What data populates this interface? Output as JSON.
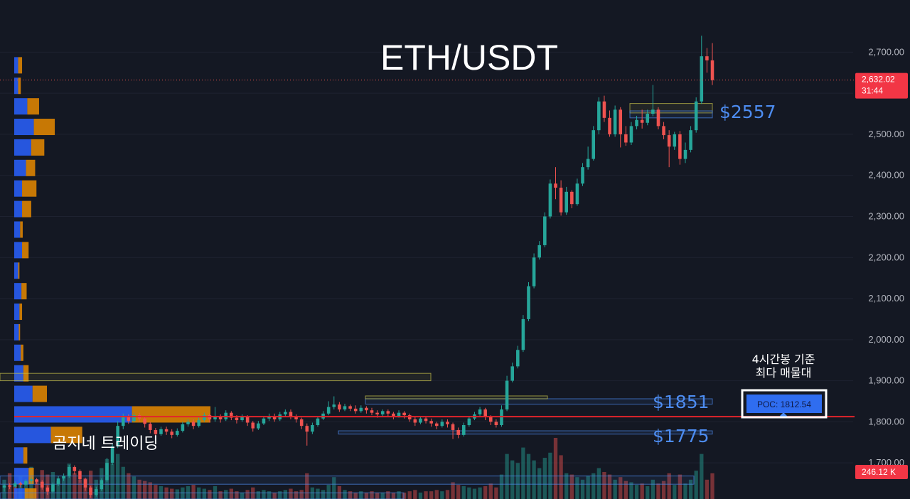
{
  "chart_data": {
    "type": "candlestick",
    "title": "ETH/USDT",
    "watermark": "곰지네 트레이딩",
    "y_ticks": [
      1700,
      1800,
      1900,
      2000,
      2100,
      2200,
      2300,
      2400,
      2500,
      2600,
      2700
    ],
    "y_tick_labels": [
      "1,700.00",
      "1,800.00",
      "1,900.00",
      "2,000.00",
      "2,100.00",
      "2,200.00",
      "2,300.00",
      "2,400.00",
      "2,500.00",
      "2,600.00",
      "2,700.00"
    ],
    "ylim": [
      1612,
      2827
    ],
    "current_price": 2632.02,
    "current_price_label": "2,632.02",
    "countdown": "31:44",
    "volume_label": "246.12 K",
    "poc": {
      "label": "POC: 1812.54",
      "price": 1812.54,
      "note_line1": "4시간봉 기준",
      "note_line2": "최다 매물대"
    },
    "levels": [
      {
        "label": "$2557",
        "price": 2557
      },
      {
        "label": "$1851",
        "price": 1851
      },
      {
        "label": "$1775",
        "price": 1775
      }
    ],
    "colors": {
      "up": "#26a69a",
      "down": "#ef5350",
      "level": "#4d8cf0",
      "poc_line": "#e3242b",
      "vp_buy": "#2962ff",
      "vp_sell": "#e68a00"
    },
    "candles": [
      [
        1640,
        1645,
        1630,
        1648
      ],
      [
        1645,
        1642,
        1636,
        1650
      ],
      [
        1642,
        1650,
        1638,
        1655
      ],
      [
        1650,
        1647,
        1640,
        1654
      ],
      [
        1647,
        1656,
        1644,
        1660
      ],
      [
        1656,
        1660,
        1650,
        1665
      ],
      [
        1660,
        1654,
        1648,
        1663
      ],
      [
        1654,
        1640,
        1635,
        1658
      ],
      [
        1640,
        1630,
        1622,
        1645
      ],
      [
        1630,
        1648,
        1626,
        1652
      ],
      [
        1648,
        1662,
        1644,
        1668
      ],
      [
        1662,
        1668,
        1656,
        1674
      ],
      [
        1668,
        1690,
        1664,
        1695
      ],
      [
        1690,
        1680,
        1672,
        1694
      ],
      [
        1680,
        1660,
        1652,
        1684
      ],
      [
        1660,
        1640,
        1632,
        1664
      ],
      [
        1640,
        1622,
        1615,
        1644
      ],
      [
        1622,
        1636,
        1618,
        1642
      ],
      [
        1636,
        1658,
        1632,
        1662
      ],
      [
        1658,
        1700,
        1654,
        1712
      ],
      [
        1700,
        1740,
        1695,
        1748
      ],
      [
        1740,
        1790,
        1736,
        1802
      ],
      [
        1790,
        1812,
        1782,
        1820
      ],
      [
        1812,
        1802,
        1795,
        1818
      ],
      [
        1802,
        1816,
        1798,
        1822
      ],
      [
        1816,
        1808,
        1800,
        1822
      ],
      [
        1808,
        1795,
        1786,
        1812
      ],
      [
        1795,
        1780,
        1772,
        1800
      ],
      [
        1780,
        1770,
        1762,
        1785
      ],
      [
        1770,
        1782,
        1766,
        1788
      ],
      [
        1782,
        1776,
        1768,
        1788
      ],
      [
        1776,
        1768,
        1760,
        1782
      ],
      [
        1768,
        1778,
        1764,
        1784
      ],
      [
        1778,
        1794,
        1774,
        1800
      ],
      [
        1794,
        1800,
        1788,
        1806
      ],
      [
        1800,
        1790,
        1782,
        1806
      ],
      [
        1790,
        1804,
        1786,
        1810
      ],
      [
        1804,
        1816,
        1800,
        1822
      ],
      [
        1816,
        1806,
        1798,
        1820
      ],
      [
        1806,
        1812,
        1800,
        1836
      ],
      [
        1812,
        1806,
        1798,
        1818
      ],
      [
        1806,
        1822,
        1802,
        1828
      ],
      [
        1822,
        1810,
        1804,
        1826
      ],
      [
        1810,
        1804,
        1796,
        1816
      ],
      [
        1804,
        1812,
        1800,
        1818
      ],
      [
        1812,
        1798,
        1790,
        1816
      ],
      [
        1798,
        1784,
        1776,
        1802
      ],
      [
        1784,
        1796,
        1780,
        1802
      ],
      [
        1796,
        1808,
        1792,
        1814
      ],
      [
        1808,
        1814,
        1802,
        1820
      ],
      [
        1814,
        1806,
        1800,
        1820
      ],
      [
        1806,
        1818,
        1802,
        1824
      ],
      [
        1818,
        1824,
        1812,
        1830
      ],
      [
        1824,
        1812,
        1806,
        1830
      ],
      [
        1812,
        1806,
        1798,
        1818
      ],
      [
        1806,
        1790,
        1782,
        1810
      ],
      [
        1790,
        1776,
        1742,
        1796
      ],
      [
        1776,
        1792,
        1770,
        1798
      ],
      [
        1792,
        1808,
        1788,
        1812
      ],
      [
        1808,
        1820,
        1804,
        1826
      ],
      [
        1820,
        1836,
        1816,
        1850
      ],
      [
        1836,
        1842,
        1830,
        1862
      ],
      [
        1842,
        1830,
        1824,
        1848
      ],
      [
        1830,
        1838,
        1826,
        1844
      ],
      [
        1838,
        1832,
        1826,
        1842
      ],
      [
        1832,
        1826,
        1820,
        1840
      ],
      [
        1826,
        1834,
        1822,
        1840
      ],
      [
        1834,
        1828,
        1820,
        1838
      ],
      [
        1828,
        1822,
        1816,
        1834
      ],
      [
        1822,
        1818,
        1810,
        1828
      ],
      [
        1818,
        1826,
        1814,
        1830
      ],
      [
        1826,
        1820,
        1812,
        1830
      ],
      [
        1820,
        1814,
        1806,
        1824
      ],
      [
        1814,
        1822,
        1810,
        1828
      ],
      [
        1822,
        1816,
        1808,
        1826
      ],
      [
        1816,
        1806,
        1800,
        1820
      ],
      [
        1806,
        1798,
        1790,
        1812
      ],
      [
        1798,
        1808,
        1794,
        1812
      ],
      [
        1808,
        1802,
        1796,
        1814
      ],
      [
        1802,
        1796,
        1788,
        1808
      ],
      [
        1796,
        1790,
        1782,
        1800
      ],
      [
        1790,
        1800,
        1786,
        1806
      ],
      [
        1800,
        1794,
        1786,
        1806
      ],
      [
        1794,
        1780,
        1758,
        1798
      ],
      [
        1780,
        1768,
        1760,
        1786
      ],
      [
        1768,
        1792,
        1764,
        1798
      ],
      [
        1792,
        1808,
        1788,
        1814
      ],
      [
        1808,
        1818,
        1804,
        1824
      ],
      [
        1818,
        1830,
        1814,
        1836
      ],
      [
        1830,
        1812,
        1804,
        1834
      ],
      [
        1812,
        1800,
        1792,
        1816
      ],
      [
        1800,
        1792,
        1786,
        1806
      ],
      [
        1792,
        1830,
        1788,
        1840
      ],
      [
        1830,
        1900,
        1826,
        1912
      ],
      [
        1900,
        1935,
        1896,
        1944
      ],
      [
        1935,
        1975,
        1930,
        1985
      ],
      [
        1975,
        2050,
        1970,
        2060
      ],
      [
        2050,
        2130,
        2045,
        2140
      ],
      [
        2130,
        2200,
        2125,
        2210
      ],
      [
        2200,
        2230,
        2195,
        2240
      ],
      [
        2230,
        2300,
        2225,
        2310
      ],
      [
        2300,
        2380,
        2295,
        2390
      ],
      [
        2380,
        2370,
        2342,
        2420
      ],
      [
        2370,
        2310,
        2302,
        2388
      ],
      [
        2310,
        2360,
        2304,
        2372
      ],
      [
        2360,
        2330,
        2320,
        2364
      ],
      [
        2330,
        2380,
        2326,
        2392
      ],
      [
        2380,
        2420,
        2374,
        2430
      ],
      [
        2420,
        2440,
        2414,
        2470
      ],
      [
        2440,
        2510,
        2436,
        2520
      ],
      [
        2510,
        2580,
        2500,
        2590
      ],
      [
        2580,
        2540,
        2530,
        2594
      ],
      [
        2540,
        2500,
        2494,
        2558
      ],
      [
        2500,
        2560,
        2494,
        2570
      ],
      [
        2560,
        2500,
        2468,
        2566
      ],
      [
        2500,
        2480,
        2472,
        2520
      ],
      [
        2480,
        2520,
        2474,
        2530
      ],
      [
        2520,
        2535,
        2512,
        2545
      ],
      [
        2535,
        2528,
        2514,
        2560
      ],
      [
        2528,
        2550,
        2522,
        2560
      ],
      [
        2550,
        2560,
        2544,
        2620
      ],
      [
        2560,
        2520,
        2512,
        2566
      ],
      [
        2520,
        2498,
        2488,
        2530
      ],
      [
        2498,
        2470,
        2420,
        2510
      ],
      [
        2470,
        2500,
        2462,
        2506
      ],
      [
        2500,
        2440,
        2426,
        2508
      ],
      [
        2440,
        2462,
        2430,
        2480
      ],
      [
        2462,
        2510,
        2456,
        2520
      ],
      [
        2510,
        2580,
        2504,
        2590
      ],
      [
        2580,
        2690,
        2574,
        2740
      ],
      [
        2690,
        2680,
        2650,
        2710
      ],
      [
        2680,
        2632,
        2620,
        2722
      ]
    ],
    "volume_profile": [
      [
        2668,
        6,
        6
      ],
      [
        2618,
        6,
        4
      ],
      [
        2568,
        20,
        18
      ],
      [
        2518,
        30,
        32
      ],
      [
        2468,
        26,
        20
      ],
      [
        2418,
        18,
        14
      ],
      [
        2368,
        12,
        22
      ],
      [
        2318,
        12,
        14
      ],
      [
        2268,
        9,
        4
      ],
      [
        2218,
        12,
        10
      ],
      [
        2168,
        6,
        2
      ],
      [
        2118,
        11,
        8
      ],
      [
        2068,
        8,
        4
      ],
      [
        2018,
        7,
        2
      ],
      [
        1968,
        10,
        4
      ],
      [
        1918,
        14,
        8
      ],
      [
        1868,
        28,
        22
      ],
      [
        1818,
        180,
        120
      ],
      [
        1768,
        56,
        48
      ],
      [
        1718,
        14,
        6
      ],
      [
        1668,
        22,
        8
      ],
      [
        1618,
        16,
        18
      ]
    ],
    "volume": [
      [
        30,
        0
      ],
      [
        40,
        1
      ],
      [
        20,
        1
      ],
      [
        35,
        0
      ],
      [
        25,
        0
      ],
      [
        50,
        0
      ],
      [
        30,
        1
      ],
      [
        45,
        1
      ],
      [
        38,
        1
      ],
      [
        42,
        0
      ],
      [
        28,
        0
      ],
      [
        36,
        0
      ],
      [
        55,
        0
      ],
      [
        40,
        1
      ],
      [
        30,
        1
      ],
      [
        32,
        1
      ],
      [
        44,
        1
      ],
      [
        30,
        0
      ],
      [
        48,
        0
      ],
      [
        62,
        0
      ],
      [
        55,
        0
      ],
      [
        70,
        0
      ],
      [
        50,
        0
      ],
      [
        40,
        1
      ],
      [
        35,
        0
      ],
      [
        30,
        1
      ],
      [
        28,
        1
      ],
      [
        26,
        1
      ],
      [
        22,
        1
      ],
      [
        20,
        0
      ],
      [
        18,
        1
      ],
      [
        16,
        1
      ],
      [
        15,
        0
      ],
      [
        18,
        0
      ],
      [
        20,
        0
      ],
      [
        22,
        1
      ],
      [
        18,
        0
      ],
      [
        16,
        0
      ],
      [
        14,
        1
      ],
      [
        20,
        0
      ],
      [
        12,
        1
      ],
      [
        14,
        0
      ],
      [
        16,
        1
      ],
      [
        12,
        1
      ],
      [
        10,
        0
      ],
      [
        14,
        1
      ],
      [
        18,
        1
      ],
      [
        12,
        0
      ],
      [
        14,
        0
      ],
      [
        12,
        0
      ],
      [
        10,
        1
      ],
      [
        12,
        0
      ],
      [
        14,
        0
      ],
      [
        16,
        1
      ],
      [
        12,
        1
      ],
      [
        14,
        1
      ],
      [
        40,
        1
      ],
      [
        18,
        0
      ],
      [
        16,
        0
      ],
      [
        14,
        0
      ],
      [
        22,
        0
      ],
      [
        34,
        0
      ],
      [
        20,
        1
      ],
      [
        14,
        0
      ],
      [
        12,
        1
      ],
      [
        10,
        1
      ],
      [
        12,
        0
      ],
      [
        10,
        1
      ],
      [
        12,
        1
      ],
      [
        10,
        1
      ],
      [
        10,
        0
      ],
      [
        12,
        1
      ],
      [
        10,
        1
      ],
      [
        12,
        0
      ],
      [
        10,
        1
      ],
      [
        12,
        1
      ],
      [
        14,
        1
      ],
      [
        10,
        0
      ],
      [
        12,
        1
      ],
      [
        12,
        1
      ],
      [
        14,
        1
      ],
      [
        12,
        0
      ],
      [
        14,
        1
      ],
      [
        26,
        1
      ],
      [
        22,
        1
      ],
      [
        20,
        0
      ],
      [
        18,
        0
      ],
      [
        16,
        0
      ],
      [
        18,
        0
      ],
      [
        20,
        1
      ],
      [
        24,
        1
      ],
      [
        18,
        1
      ],
      [
        38,
        0
      ],
      [
        70,
        0
      ],
      [
        60,
        0
      ],
      [
        56,
        0
      ],
      [
        80,
        0
      ],
      [
        70,
        0
      ],
      [
        60,
        0
      ],
      [
        48,
        0
      ],
      [
        64,
        0
      ],
      [
        72,
        0
      ],
      [
        95,
        1
      ],
      [
        68,
        1
      ],
      [
        40,
        0
      ],
      [
        38,
        1
      ],
      [
        34,
        0
      ],
      [
        30,
        0
      ],
      [
        36,
        0
      ],
      [
        40,
        0
      ],
      [
        48,
        0
      ],
      [
        42,
        1
      ],
      [
        38,
        1
      ],
      [
        30,
        0
      ],
      [
        34,
        1
      ],
      [
        28,
        1
      ],
      [
        26,
        0
      ],
      [
        22,
        0
      ],
      [
        24,
        1
      ],
      [
        20,
        0
      ],
      [
        30,
        0
      ],
      [
        24,
        1
      ],
      [
        28,
        1
      ],
      [
        40,
        1
      ],
      [
        22,
        0
      ],
      [
        38,
        1
      ],
      [
        24,
        0
      ],
      [
        30,
        0
      ],
      [
        44,
        0
      ],
      [
        70,
        0
      ],
      [
        30,
        1
      ],
      [
        40,
        1
      ]
    ]
  }
}
